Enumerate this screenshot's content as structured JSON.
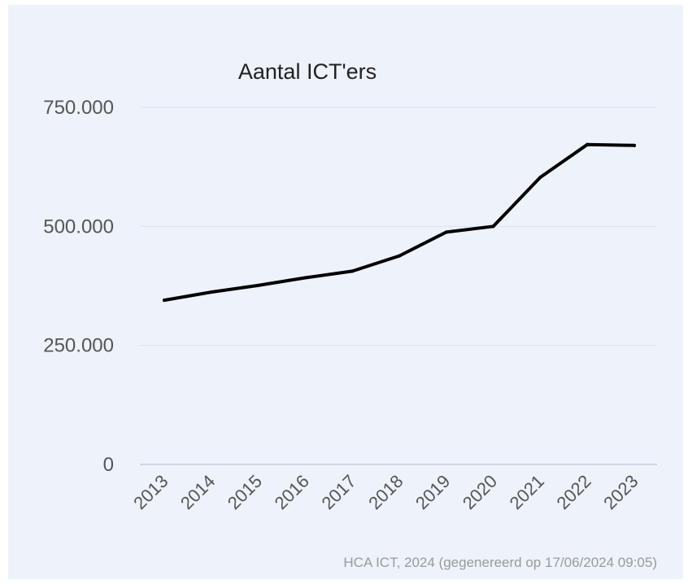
{
  "chart_data": {
    "type": "line",
    "title": "Aantal ICT'ers",
    "xlabel": "",
    "ylabel": "",
    "categories": [
      "2013",
      "2014",
      "2015",
      "2016",
      "2017",
      "2018",
      "2019",
      "2020",
      "2021",
      "2022",
      "2023"
    ],
    "series": [
      {
        "values": [
          345000,
          362000,
          376000,
          392000,
          406000,
          438000,
          488000,
          500000,
          603000,
          672000,
          670000
        ]
      }
    ],
    "yticks": [
      {
        "value": 0,
        "label": "0"
      },
      {
        "value": 250000,
        "label": "250.000"
      },
      {
        "value": 500000,
        "label": "500.000"
      },
      {
        "value": 750000,
        "label": "750.000"
      }
    ],
    "ylim": [
      0,
      750000
    ],
    "grid": true,
    "legend": "none",
    "line_color": "#000000",
    "gridline_color": "#dde3ee",
    "baseline_color": "#c6cee0",
    "background_color": "#eef2fa"
  },
  "credit": "HCA ICT, 2024 (gegenereerd op 17/06/2024 09:05)"
}
